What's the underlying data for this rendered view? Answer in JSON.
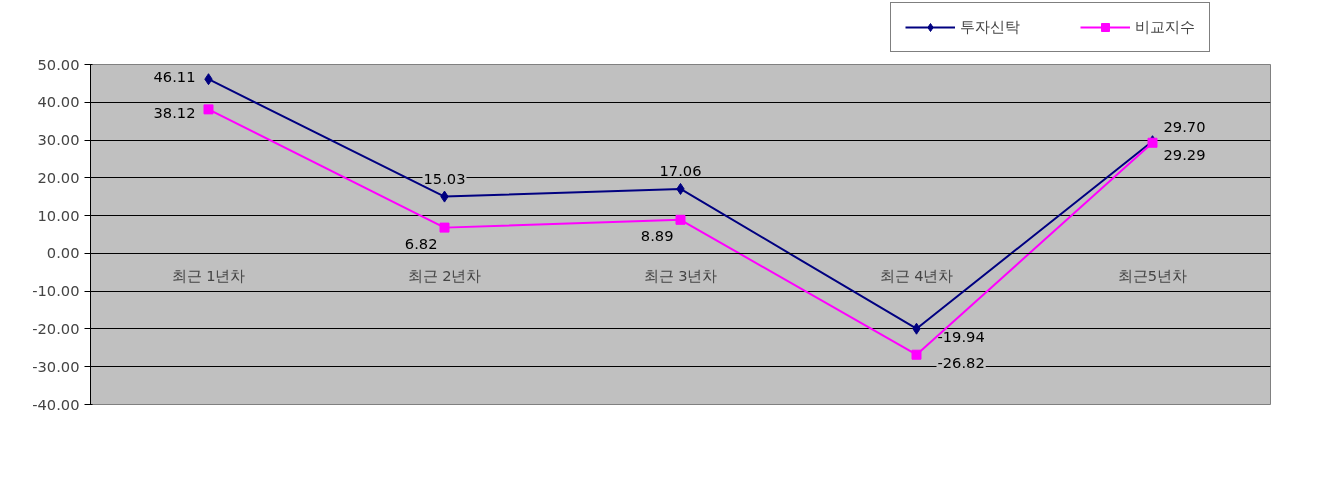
{
  "chart_data": {
    "type": "line",
    "categories": [
      "최근 1년차",
      "최근 2년차",
      "최근 3년차",
      "최근 4년차",
      "최근5년차"
    ],
    "series": [
      {
        "name": "투자신탁",
        "color": "#000080",
        "marker": "diamond",
        "values": [
          46.11,
          15.03,
          17.06,
          -19.94,
          29.7
        ],
        "value_labels": [
          "46.11",
          "15.03",
          "17.06",
          "-19.94",
          "29.70"
        ]
      },
      {
        "name": "비교지수",
        "color": "#ff00ff",
        "marker": "square",
        "values": [
          38.12,
          6.82,
          8.89,
          -26.82,
          29.29
        ],
        "value_labels": [
          "38.12",
          "6.82",
          "8.89",
          "-26.82",
          "29.29"
        ]
      }
    ],
    "ylim": [
      -40,
      50
    ],
    "yticks": [
      {
        "value": -40,
        "label": "-40.00"
      },
      {
        "value": -30,
        "label": "-30.00"
      },
      {
        "value": -20,
        "label": "-20.00"
      },
      {
        "value": -10,
        "label": "-10.00"
      },
      {
        "value": 0,
        "label": "0.00"
      },
      {
        "value": 10,
        "label": "10.00"
      },
      {
        "value": 20,
        "label": "20.00"
      },
      {
        "value": 30,
        "label": "30.00"
      },
      {
        "value": 40,
        "label": "40.00"
      },
      {
        "value": 50,
        "label": "50.00"
      }
    ],
    "grid": "y",
    "legend": "top right"
  }
}
